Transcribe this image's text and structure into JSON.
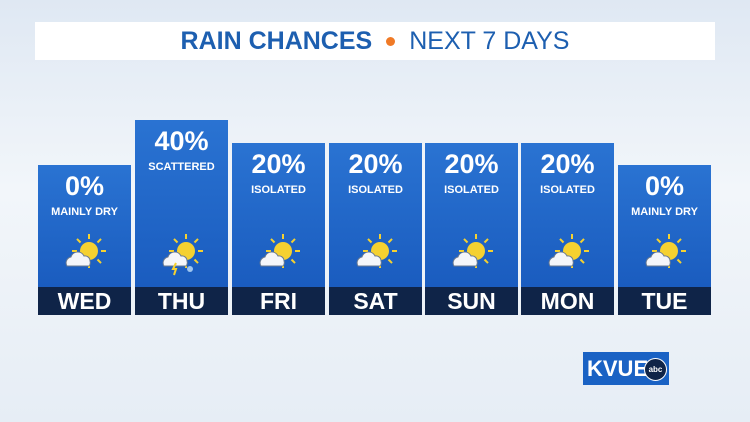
{
  "header": {
    "title": "RAIN CHANCES",
    "subtitle": "NEXT 7 DAYS"
  },
  "days": [
    {
      "day": "WED",
      "chance": "0%",
      "description": "MAINLY DRY"
    },
    {
      "day": "THU",
      "chance": "40%",
      "description": "SCATTERED"
    },
    {
      "day": "FRI",
      "chance": "20%",
      "description": "ISOLATED"
    },
    {
      "day": "SAT",
      "chance": "20%",
      "description": "ISOLATED"
    },
    {
      "day": "SUN",
      "chance": "20%",
      "description": "ISOLATED"
    },
    {
      "day": "MON",
      "chance": "20%",
      "description": "ISOLATED"
    },
    {
      "day": "TUE",
      "chance": "0%",
      "description": "MAINLY DRY"
    }
  ],
  "logo": {
    "station": "KVUE",
    "network": "abc"
  }
}
